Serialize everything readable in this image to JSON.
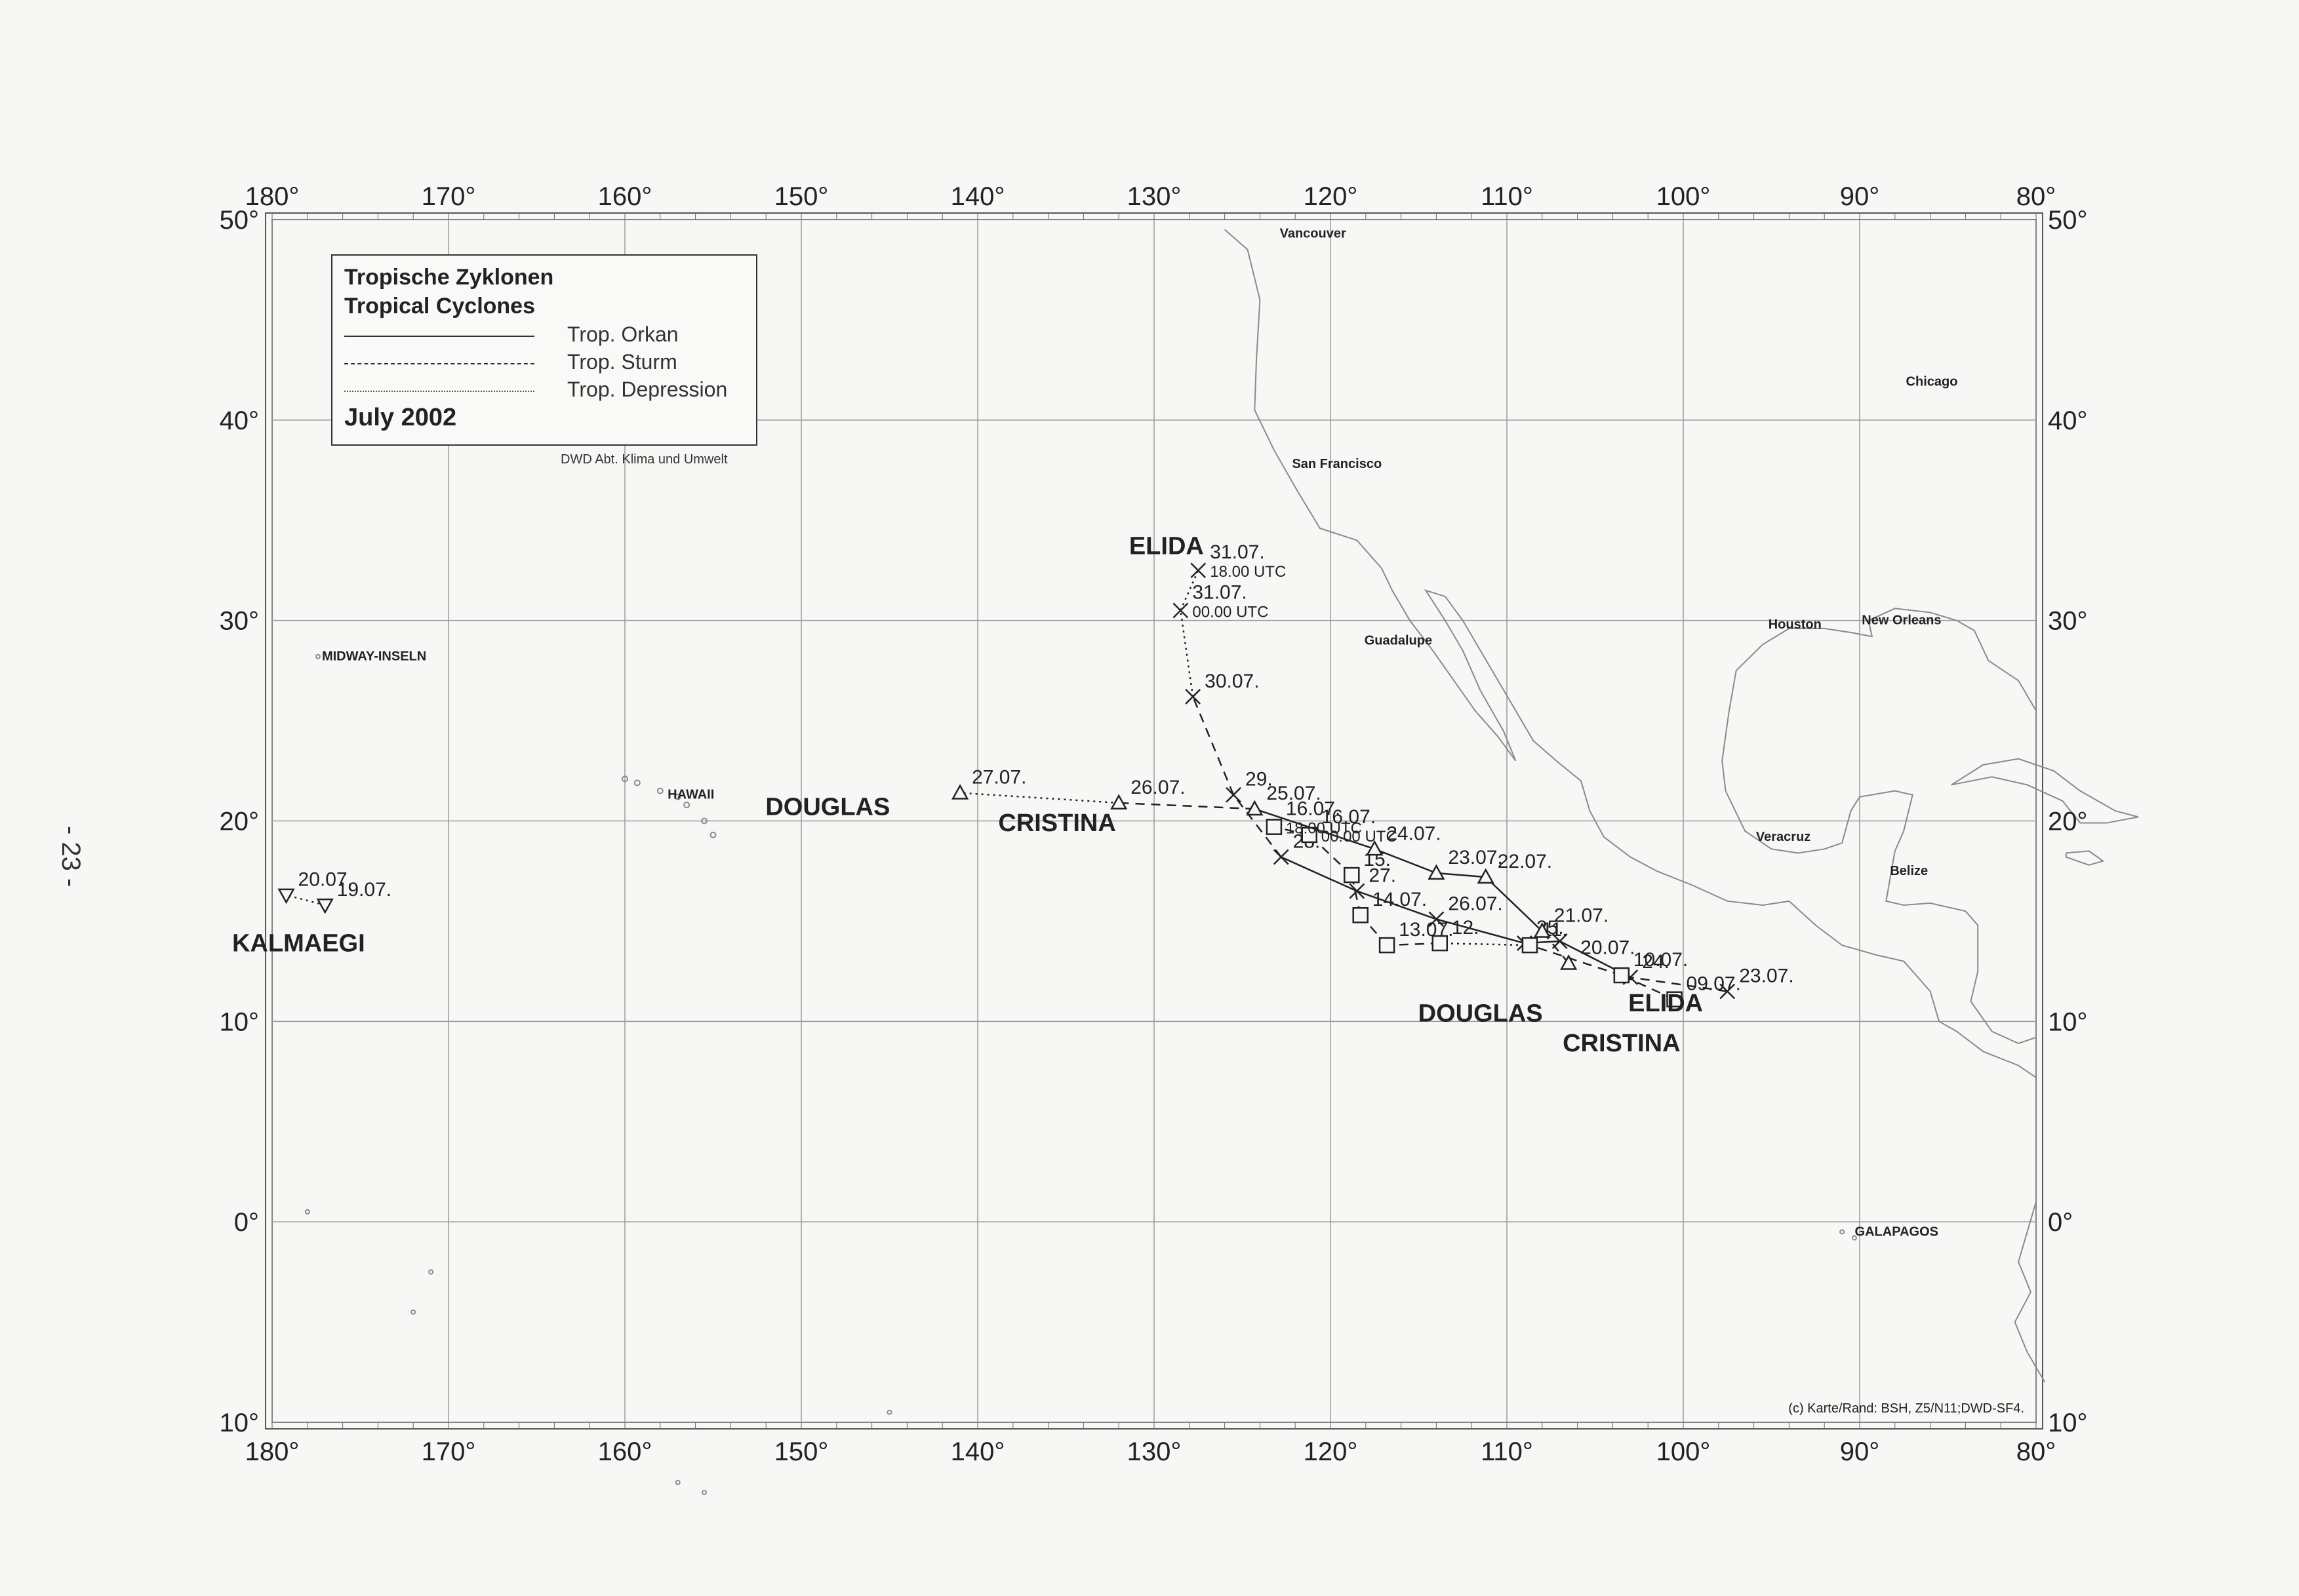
{
  "page_number": "- 23 -",
  "legend": {
    "title_de": "Tropische Zyklonen",
    "title_en": "Tropical Cyclones",
    "entries": [
      {
        "label": "Trop. Orkan",
        "style": "solid"
      },
      {
        "label": "Trop. Sturm",
        "style": "dashed"
      },
      {
        "label": "Trop. Depression",
        "style": "dotted"
      }
    ],
    "period": "July  2002"
  },
  "credit": "DWD   Abt. Klima und Umwelt",
  "copyright": "(c) Karte/Rand: BSH, Z5/N11;DWD-SF4.",
  "lon_labels": [
    "180°",
    "170°",
    "160°",
    "150°",
    "140°",
    "130°",
    "120°",
    "110°",
    "100°",
    "90°",
    "80°"
  ],
  "lat_labels": [
    "50°",
    "40°",
    "30°",
    "20°",
    "10°",
    "0°",
    "10°"
  ],
  "places": [
    {
      "name": "Vancouver",
      "lon": -123.1,
      "lat": 49.3
    },
    {
      "name": "San Francisco",
      "lon": -122.4,
      "lat": 37.8
    },
    {
      "name": "Guadalupe",
      "lon": -118.3,
      "lat": 29.0
    },
    {
      "name": "Chicago",
      "lon": -87.6,
      "lat": 41.9
    },
    {
      "name": "Houston",
      "lon": -95.4,
      "lat": 29.8
    },
    {
      "name": "New Orleans",
      "lon": -90.1,
      "lat": 30.0
    },
    {
      "name": "Veracruz",
      "lon": -96.1,
      "lat": 19.2
    },
    {
      "name": "Belize",
      "lon": -88.5,
      "lat": 17.5
    },
    {
      "name": "GALAPAGOS",
      "lon": -90.5,
      "lat": -0.5
    },
    {
      "name": "MIDWAY-INSELN",
      "lon": -177.4,
      "lat": 28.2
    },
    {
      "name": "HAWAII",
      "lon": -157.8,
      "lat": 21.3
    }
  ],
  "storms": [
    {
      "name": "ELIDA",
      "marker": "x",
      "name_labels": [
        "ELIDA",
        "ELIDA"
      ],
      "track": [
        {
          "lon": -97.5,
          "lat": 11.5,
          "label": "23.07.",
          "cat": "S"
        },
        {
          "lon": -103.0,
          "lat": 12.2,
          "label": "24.",
          "cat": "O"
        },
        {
          "lon": -107.0,
          "lat": 14.0,
          "label": "",
          "cat": "O"
        },
        {
          "lon": -109.0,
          "lat": 13.9,
          "label": "25.",
          "cat": "O"
        },
        {
          "lon": -114.0,
          "lat": 15.1,
          "label": "26.07.",
          "cat": "O"
        },
        {
          "lon": -118.5,
          "lat": 16.5,
          "label": "27.",
          "cat": "O"
        },
        {
          "lon": -122.8,
          "lat": 18.2,
          "label": "28.",
          "cat": "S"
        },
        {
          "lon": -125.5,
          "lat": 21.3,
          "label": "29.",
          "cat": "S"
        },
        {
          "lon": -127.8,
          "lat": 26.2,
          "label": "30.07.",
          "cat": "D"
        },
        {
          "lon": -128.5,
          "lat": 30.5,
          "label": "31.07. 00.00 UTC",
          "cat": "D"
        },
        {
          "lon": -127.5,
          "lat": 32.5,
          "label": "31.07. 18.00 UTC",
          "cat": ""
        }
      ]
    },
    {
      "name": "CRISTINA",
      "marker": "square",
      "name_labels": [
        "CRISTINA",
        "CRISTINA"
      ],
      "track": [
        {
          "lon": -100.5,
          "lat": 11.1,
          "label": "09.07.",
          "cat": "S"
        },
        {
          "lon": -103.5,
          "lat": 12.3,
          "label": "10.07.",
          "cat": "S"
        },
        {
          "lon": -108.7,
          "lat": 13.8,
          "label": "11.",
          "cat": "D"
        },
        {
          "lon": -113.8,
          "lat": 13.9,
          "label": "12.",
          "cat": "S"
        },
        {
          "lon": -116.8,
          "lat": 13.8,
          "label": "13.07.",
          "cat": "S"
        },
        {
          "lon": -118.3,
          "lat": 15.3,
          "label": "14.07.",
          "cat": "S"
        },
        {
          "lon": -118.8,
          "lat": 17.3,
          "label": "15.",
          "cat": "S"
        },
        {
          "lon": -121.2,
          "lat": 19.3,
          "label": "16.07. 00.00 UTC",
          "cat": "S"
        },
        {
          "lon": -123.2,
          "lat": 19.7,
          "label": "16.07. 18.00 UTC",
          "cat": ""
        }
      ]
    },
    {
      "name": "DOUGLAS",
      "marker": "triangle",
      "name_labels": [
        "DOUGLAS",
        "DOUGLAS"
      ],
      "track": [
        {
          "lon": -106.5,
          "lat": 12.9,
          "label": "20.07.",
          "cat": "S"
        },
        {
          "lon": -108.0,
          "lat": 14.5,
          "label": "21.07.",
          "cat": "O"
        },
        {
          "lon": -111.2,
          "lat": 17.2,
          "label": "22.07.",
          "cat": "O"
        },
        {
          "lon": -114.0,
          "lat": 17.4,
          "label": "23.07.",
          "cat": "O"
        },
        {
          "lon": -117.5,
          "lat": 18.6,
          "label": "24.07.",
          "cat": "O"
        },
        {
          "lon": -124.3,
          "lat": 20.6,
          "label": "25.07.",
          "cat": "S"
        },
        {
          "lon": -132.0,
          "lat": 20.9,
          "label": "26.07.",
          "cat": "D"
        },
        {
          "lon": -141.0,
          "lat": 21.4,
          "label": "27.07.",
          "cat": ""
        }
      ]
    },
    {
      "name": "KALMAEGI",
      "marker": "triangle-down",
      "name_labels": [
        "KALMAEGI"
      ],
      "track": [
        {
          "lon": -177.0,
          "lat": 15.8,
          "label": "19.07.",
          "cat": "D"
        },
        {
          "lon": -179.2,
          "lat": 16.3,
          "label": "20.07.",
          "cat": ""
        }
      ]
    }
  ]
}
